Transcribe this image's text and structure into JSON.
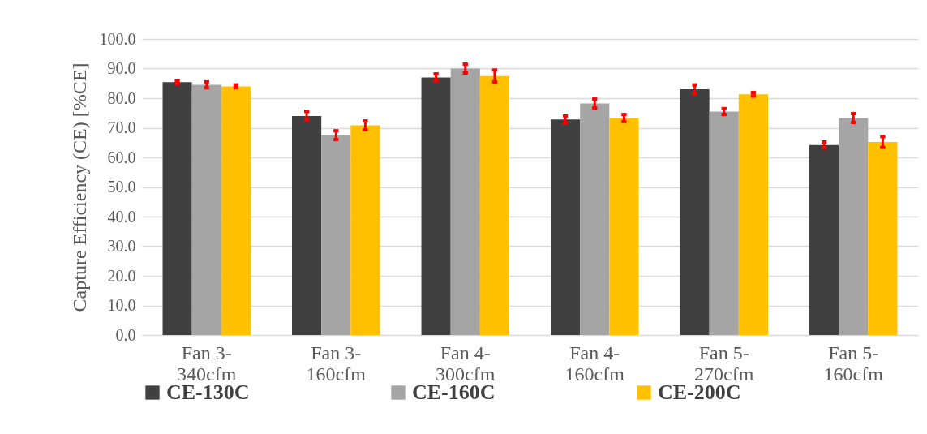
{
  "chart_data": {
    "type": "bar",
    "ylabel": "Capture Efficiency (CE) [%CE]",
    "categories": [
      "Fan 3-340cfm",
      "Fan 3-160cfm",
      "Fan 4-300cfm",
      "Fan 4-160cfm",
      "Fan 5-270cfm",
      "Fan 5-160cfm"
    ],
    "series": [
      {
        "name": "CE-130C",
        "color": "#404040",
        "values": [
          85.4,
          74.0,
          87.0,
          72.8,
          83.0,
          64.2
        ],
        "errors": [
          0.5,
          1.5,
          1.2,
          1.2,
          1.5,
          1.0
        ]
      },
      {
        "name": "CE-160C",
        "color": "#a5a5a5",
        "values": [
          84.5,
          67.5,
          90.0,
          78.2,
          75.5,
          73.3
        ],
        "errors": [
          1.0,
          1.5,
          1.5,
          1.5,
          1.0,
          1.5
        ]
      },
      {
        "name": "CE-200C",
        "color": "#ffc000",
        "values": [
          84.0,
          70.8,
          87.5,
          73.3,
          81.3,
          65.2
        ],
        "errors": [
          0.5,
          1.5,
          2.0,
          1.2,
          0.6,
          1.8
        ]
      }
    ],
    "ylim": [
      0,
      100
    ],
    "yticks": [
      {
        "value": 0,
        "label": "0.0"
      },
      {
        "value": 10,
        "label": "10.0"
      },
      {
        "value": 20,
        "label": "20.0"
      },
      {
        "value": 30,
        "label": "30.0"
      },
      {
        "value": 40,
        "label": "40.0"
      },
      {
        "value": 50,
        "label": "50.0"
      },
      {
        "value": 60,
        "label": "60.0"
      },
      {
        "value": 70,
        "label": "70.0"
      },
      {
        "value": 80,
        "label": "80.0"
      },
      {
        "value": 90,
        "label": "90.0"
      },
      {
        "value": 100,
        "label": "100.0"
      }
    ],
    "grid": "y",
    "legend": "bottom"
  }
}
